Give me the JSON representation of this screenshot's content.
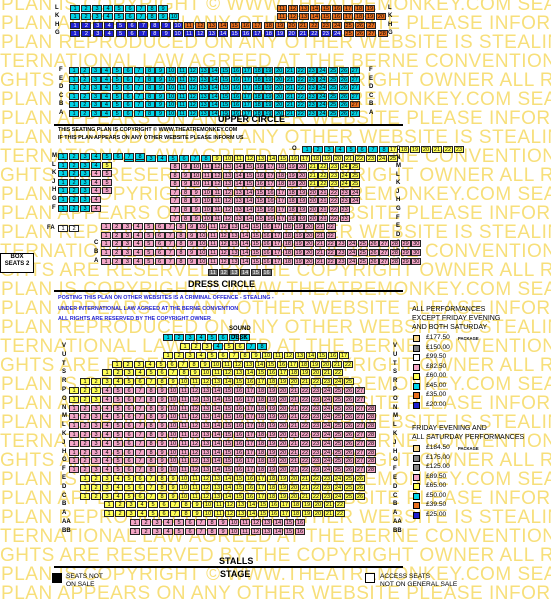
{
  "watermark_lines": [
    "G PLAN IS COPYRIGHT © WWW.THEATREMONKEY.COM    SEATIN",
    "G PLAN APPEARS ON ANY OTHER WEBSITE PLEASE INFORM US  IF THIS",
    "G PLAN REPRODUCED ON ANY OTHER WEBSITE IS STEALING -   AS SUCH",
    "INTERNATIONAL LAW AGREED AT THE BERNE CONVENTION     UNDER",
    "RIGHTS ARE RESERVED BY THE COPYRIGHT OWNER       ALL RIGHTS",
    "G PLAN IS COPYRIGHT © WWW.THEATREMONKEY.COM    SEATIN",
    "G PLAN APPEARS ON ANY OTHER WEBSITE PLEASE INFORM US  IF THIS",
    "G PLAN REPRODUCED ON ANY OTHER WEBSITE IS STEALING -   AS SUCH",
    "INTERNATIONAL LAW AGREED AT THE BERNE CONVENTION     UNDER",
    "RIGHTS ARE RESERVED BY THE COPYRIGHT OWNER       ALL RIGHTS",
    "G PLAN IS COPYRIGHT © WWW.THEATREMONKEY.COM    SEATIN",
    "G PLAN APPEARS ON ANY OTHER WEBSITE PLEASE INFORM US  IF THIS",
    "G PLAN REPRODUCED ON ANY OTHER WEBSITE IS STEALING -   AS SUCH",
    "INTERNATIONAL LAW AGREED AT THE BERNE CONVENTION     UNDER",
    "RIGHTS ARE RESERVED BY THE COPYRIGHT OWNER       ALL RIGHTS",
    "G PLAN IS COPYRIGHT © WWW.THEATREMONKEY.COM    SEATIN",
    "G PLAN APPEARS ON ANY OTHER WEBSITE PLEASE INFORM US  IF THIS",
    "G PLAN REPRODUCED ON ANY OTHER WEBSITE IS STEALING -   AS SUCH",
    "INTERNATIONAL LAW AGREED AT THE BERNE CONVENTION     UNDER",
    "RIGHTS ARE RESERVED BY THE COPYRIGHT OWNER       ALL RIGHTS",
    "G PLAN IS COPYRIGHT © WWW.THEATREMONKEY.COM    SEATIN",
    "G PLAN APPEARS ON ANY OTHER WEBSITE PLEASE INFORM US  IF THIS",
    "G PLAN REPRODUCED ON ANY OTHER WEBSITE IS STEALING -   AS SUCH",
    "INTERNATIONAL LAW AGREED AT THE BERNE CONVENTION     UNDER",
    "RIGHTS ARE RESERVED BY THE COPYRIGHT OWNER       ALL RIGHTS",
    "G PLAN IS COPYRIGHT © WWW.THEATREMONKEY.COM    SEATIN",
    "G PLAN APPEARS ON ANY OTHER WEBSITE PLEASE INFORM US  IF THIS",
    "G PLAN REPRODUCED ON ANY OTHER WEBSITE IS STEALING -   AS SUCH",
    "INTERNATIONAL LAW AGREED AT THE BERNE CONVENTION     UNDER",
    "RIGHTS ARE RESERVED BY THE COPYRIGHT OWNER       ALL RIGHTS",
    "G PLAN IS COPYRIGHT © WWW.THEATREMONKEY.COM    SEATIN",
    "G PLAN APPEARS ON ANY OTHER WEBSITE PLEASE INFORM US  IF THIS"
  ],
  "colors": {
    "p177": "#f7d58a",
    "p150": "#888888",
    "p99": "#ffffff",
    "p82": "#f4a6c8",
    "p60": "#ffff55",
    "p45": "#00d4e8",
    "p35": "#e86e1e",
    "p20": "#1f1fd0",
    "restricted": "#6a6a6a"
  },
  "sections": {
    "upper_circle": "UPPER CIRCLE",
    "dress_circle": "DRESS CIRCLE",
    "stalls": "STALLS",
    "stage": "STAGE"
  },
  "notices": {
    "dc_line1": "THIS SEATING PLAN IS COPYRIGHT © WWW.THEATREMONKEY.COM",
    "dc_line2": "IF THIS PLAN APPEARS ON ANY OTHER WEBSITE PLEASE INFORM US",
    "st_line1": "POSTING THIS PLAN ON OTHER WEBSITES IS A CRIMINAL OFFENCE - STEALING -",
    "st_line2": "UNDER INTERNATIONAL LAW AGREED AT THE BERNE CONVENTION",
    "st_line3": "ALL RIGHTS ARE RESERVED BY THE COPYRIGHT OWNER"
  },
  "box": {
    "line1": "BOX",
    "line2": "SEATS 2"
  },
  "sound_desk": {
    "line1": "SOUND",
    "line2": "DESK"
  },
  "legend": {
    "group1_title": [
      "ALL PERFORMANCES",
      "EXCEPT FRIDAY EVENING",
      "AND BOTH SATURDAY"
    ],
    "group1": [
      {
        "price": "£177.50",
        "color": "p177",
        "package": "PACKAGE"
      },
      {
        "price": "£150.00",
        "color": "p150",
        "package": ""
      },
      {
        "price": "£99.50",
        "color": "p99",
        "package": ""
      },
      {
        "price": "£82.50",
        "color": "p82",
        "package": ""
      },
      {
        "price": "£60.00",
        "color": "p60",
        "package": ""
      },
      {
        "price": "£45.00",
        "color": "p45",
        "package": ""
      },
      {
        "price": "£35.00",
        "color": "p35",
        "package": ""
      },
      {
        "price": "£20.00",
        "color": "p20",
        "package": ""
      }
    ],
    "group2_title": [
      "FRIDAY EVENING AND",
      "ALL SATURDAY PERFORMANCES"
    ],
    "group2": [
      {
        "price": "£184.50",
        "color": "p177",
        "package": "PACKAGE"
      },
      {
        "price": "£175.00",
        "color": "p150",
        "package": ""
      },
      {
        "price": "£125.00",
        "color": "p150",
        "package": ""
      },
      {
        "price": "£89.50",
        "color": "p82",
        "package": ""
      },
      {
        "price": "£65.00",
        "color": "p60",
        "package": ""
      },
      {
        "price": "£50.00",
        "color": "p45",
        "package": ""
      },
      {
        "price": "£39.50",
        "color": "p35",
        "package": ""
      },
      {
        "price": "£25.00",
        "color": "p20",
        "package": ""
      }
    ]
  },
  "footer": {
    "not_on_sale": [
      "SEATS NOT",
      "ON SALE"
    ],
    "access": [
      "ACCESS SEATS",
      "NOT ON GENERAL SALE"
    ]
  },
  "upper_circle": {
    "left_labels": [
      "L",
      "K",
      "H",
      "G",
      "F",
      "E",
      "D",
      "C",
      "B",
      "A"
    ],
    "right_labels": [
      "L",
      "K",
      "H",
      "G",
      "F",
      "E",
      "D",
      "C",
      "B",
      "A"
    ],
    "rows": [
      {
        "label": "L",
        "segments": [
          {
            "from": 1,
            "to": 9,
            "color": "p45"
          },
          {
            "from": 11,
            "to": 19,
            "color": "p35"
          }
        ]
      },
      {
        "label": "K",
        "segments": [
          {
            "from": 1,
            "to": 10,
            "color": "p45"
          },
          {
            "from": 11,
            "to": 20,
            "color": "p35"
          }
        ]
      },
      {
        "label": "H",
        "segments": [
          {
            "from": 1,
            "to": 27,
            "color": "p20",
            "split": [
              11,
              27,
              "p35"
            ]
          }
        ]
      },
      {
        "label": "G",
        "segments": [
          {
            "from": 1,
            "to": 28,
            "color": "p20"
          }
        ]
      },
      {
        "label": "F",
        "segments": [
          {
            "from": 1,
            "to": 27,
            "color": "p45"
          }
        ]
      },
      {
        "label": "E",
        "segments": [
          {
            "from": 1,
            "to": 27,
            "color": "p45"
          }
        ]
      },
      {
        "label": "D",
        "segments": [
          {
            "from": 1,
            "to": 27,
            "color": "p45"
          }
        ]
      },
      {
        "label": "C",
        "segments": [
          {
            "from": 1,
            "to": 27,
            "color": "p45"
          }
        ]
      },
      {
        "label": "B",
        "segments": [
          {
            "from": 1,
            "to": 27,
            "color": "p45"
          }
        ]
      },
      {
        "label": "A",
        "segments": [
          {
            "from": 1,
            "to": 27,
            "color": "p45"
          }
        ]
      }
    ]
  },
  "dress_circle": {
    "box_row": {
      "left": "FA",
      "right": "1 2"
    },
    "row_labels_left": [
      "O",
      "N",
      "M",
      "L",
      "K",
      "J",
      "H",
      "G",
      "F",
      "E",
      "D",
      "C",
      "B",
      "A"
    ],
    "row_labels_right": [
      "O",
      "N",
      "M",
      "L",
      "K",
      "J",
      "H",
      "G",
      "F",
      "E",
      "D",
      "C",
      "B",
      "A"
    ]
  },
  "stalls": {
    "row_labels": [
      "V",
      "U",
      "T",
      "S",
      "R",
      "P",
      "O",
      "N",
      "M",
      "L",
      "K",
      "J",
      "H",
      "G",
      "F",
      "E",
      "D",
      "C",
      "B",
      "A",
      "AA",
      "BB"
    ]
  }
}
